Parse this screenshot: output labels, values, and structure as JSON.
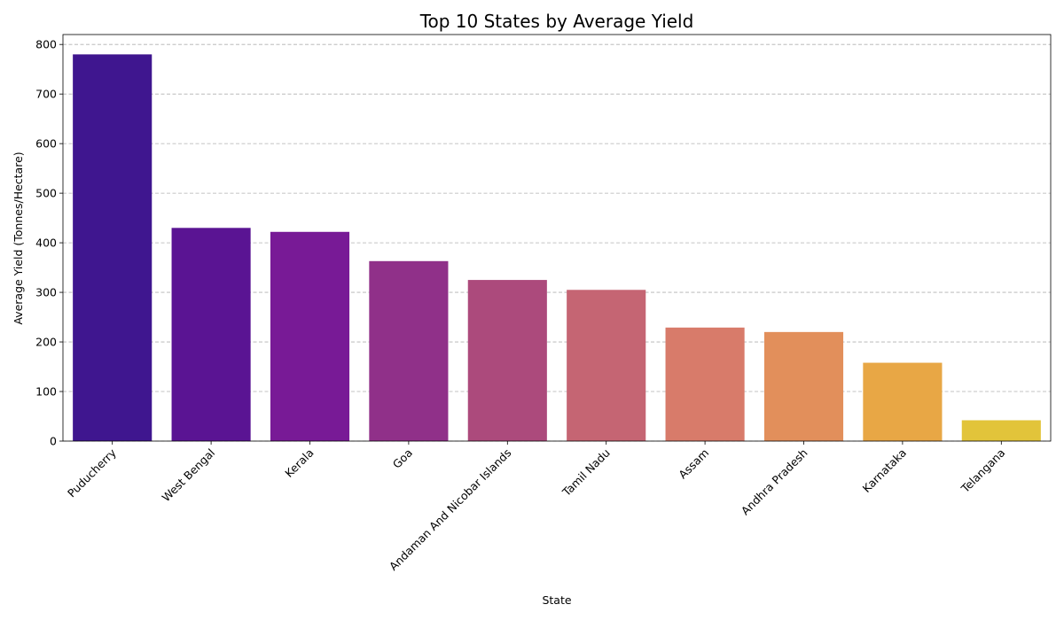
{
  "chart_data": {
    "type": "bar",
    "title": "Top 10 States by Average Yield",
    "xlabel": "State",
    "ylabel": "Average Yield (Tonnes/Hectare)",
    "categories": [
      "Puducherry",
      "West Bengal",
      "Kerala",
      "Goa",
      "Andaman And Nicobar Islands",
      "Tamil Nadu",
      "Assam",
      "Andhra Pradesh",
      "Karnataka",
      "Telangana"
    ],
    "values": [
      780,
      430,
      422,
      363,
      325,
      305,
      229,
      220,
      158,
      42
    ],
    "colors": [
      "#3f168f",
      "#5a1493",
      "#781a96",
      "#903089",
      "#ac4a7c",
      "#c56573",
      "#d87b6a",
      "#e28f5b",
      "#e8a745",
      "#e2c43a"
    ],
    "ylim": [
      0,
      820
    ],
    "yticks": [
      0,
      100,
      200,
      300,
      400,
      500,
      600,
      700,
      800
    ],
    "grid": "y"
  }
}
